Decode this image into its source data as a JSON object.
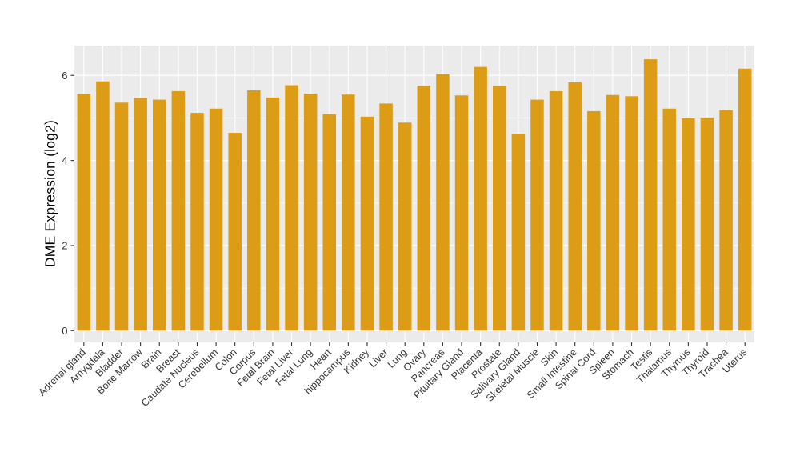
{
  "chart_data": {
    "type": "bar",
    "title": "",
    "xlabel": "",
    "ylabel": "DME Expression (log2)",
    "categories": [
      "Adrenal gland",
      "Amygdala",
      "Bladder",
      "Bone Marrow",
      "Brain",
      "Breast",
      "Caudate Nucleus",
      "Cerebellum",
      "Colon",
      "Corpus",
      "Fetal Brain",
      "Fetal Liver",
      "Fetal Lung",
      "Heart",
      "hippocampus",
      "Kidney",
      "Liver",
      "Lung",
      "Ovary",
      "Pancreas",
      "Pituitary Gland",
      "Placenta",
      "Prostate",
      "Salivary Gland",
      "Skeletal Muscle",
      "Skin",
      "Small Intestine",
      "Spinal Cord",
      "Spleen",
      "Stomach",
      "Testis",
      "Thalamus",
      "Thymus",
      "Thyroid",
      "Trachea",
      "Uterus"
    ],
    "values": [
      5.57,
      5.86,
      5.36,
      5.47,
      5.43,
      5.63,
      5.12,
      5.22,
      4.65,
      5.65,
      5.48,
      5.77,
      5.57,
      5.09,
      5.55,
      5.03,
      5.34,
      4.89,
      5.76,
      6.03,
      5.53,
      6.2,
      5.76,
      4.62,
      5.43,
      5.63,
      5.84,
      5.16,
      5.54,
      5.51,
      6.38,
      5.22,
      4.99,
      5.01,
      5.18,
      6.16
    ],
    "ylim": [
      0,
      6.72
    ],
    "yticks": [
      0,
      2,
      4,
      6
    ],
    "yticks_minor": [
      1,
      3,
      5
    ],
    "grid": true,
    "legend": "none",
    "x_label_angle": -45,
    "colors": {
      "bar_fill": "#DC9C16",
      "panel_bg": "#EBEBEB",
      "grid": "#FFFFFF",
      "axis_text": "#333333",
      "tick_mark": "#333333",
      "axis_title": "#000000",
      "background": "#FFFFFF"
    }
  }
}
